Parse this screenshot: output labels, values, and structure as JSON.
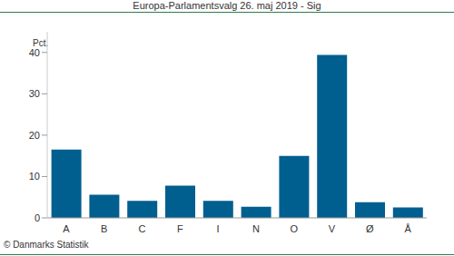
{
  "chart_data": {
    "type": "bar",
    "title": "Europa-Parlamentsvalg 26. maj 2019 - Sig",
    "y_label": "Pct.",
    "annotations": [
      "© Danmarks Statistik"
    ],
    "categories": [
      "A",
      "B",
      "C",
      "F",
      "I",
      "N",
      "O",
      "V",
      "Ø",
      "Å"
    ],
    "values": [
      16.5,
      5.6,
      4.1,
      7.8,
      4.1,
      2.7,
      15.0,
      39.4,
      3.8,
      2.5
    ],
    "color": "#005f8f",
    "ylim": [
      0,
      45
    ],
    "yticks": [
      0,
      10,
      20,
      30,
      40
    ],
    "grid": false
  }
}
